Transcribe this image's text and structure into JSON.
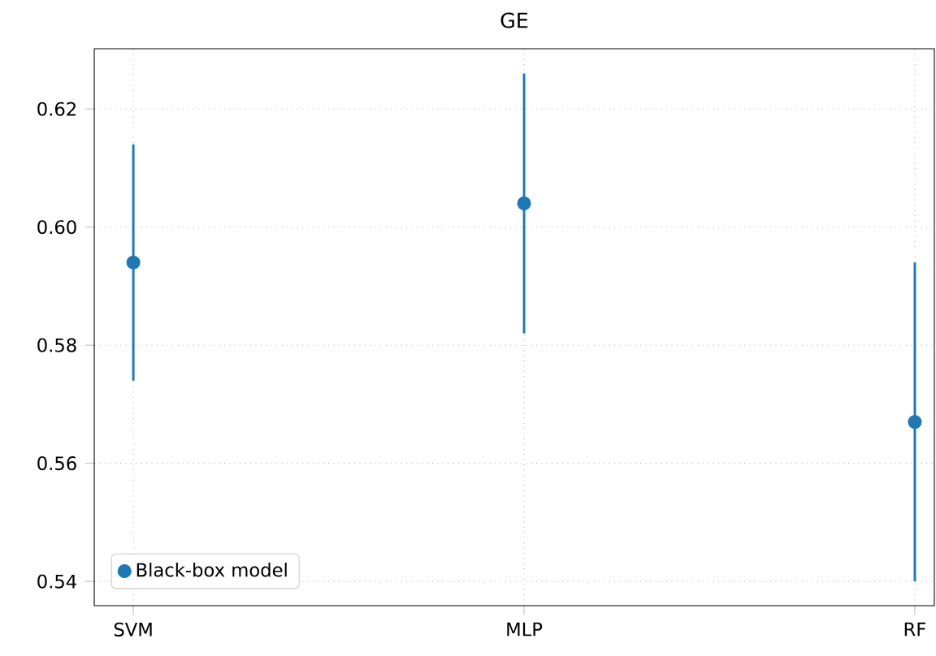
{
  "chart_data": {
    "type": "scatter",
    "title": "GE",
    "categories": [
      "SVM",
      "MLP",
      "RF"
    ],
    "series": [
      {
        "name": "Black-box model",
        "color": "#1f77b4",
        "values": [
          0.594,
          0.604,
          0.567
        ],
        "errors": [
          0.02,
          0.022,
          0.027
        ]
      }
    ],
    "ylim": [
      0.5359,
      0.6302
    ],
    "yticks": [
      {
        "value": 0.54,
        "label": "0.54"
      },
      {
        "value": 0.56,
        "label": "0.56"
      },
      {
        "value": 0.58,
        "label": "0.58"
      },
      {
        "value": 0.6,
        "label": "0.60"
      },
      {
        "value": 0.62,
        "label": "0.62"
      }
    ],
    "grid": true,
    "legend": "bottom left",
    "marker": "circle"
  }
}
